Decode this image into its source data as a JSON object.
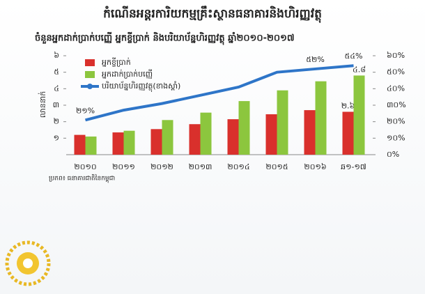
{
  "chart_data": {
    "type": "bar-line",
    "title": "កំណើនអន្តរការិយកម្មគ្រឹះស្ថានធនាគារនិងហិរញ្ញវត្ថុ",
    "subtitle": "ចំនួនអ្នកដាក់ប្រាក់បញ្ញើ  អ្នកខ្ចីប្រាក់ និងបរិយាប័ន្នហិរញ្ញវត្ថុ ឆ្នាំ២០១០-២០១៧",
    "y_label": "លាននាក់",
    "source": "ប្រភព៖ ធនាគារជាតិនៃកម្ពុជា",
    "categories": [
      "២០១០",
      "២០១១",
      "២០១២",
      "២០១៣",
      "២០១៤",
      "២០១៥",
      "២០១៦",
      "ឆ១-១៧"
    ],
    "series": [
      {
        "name": "អ្នកខ្ចីប្រាក់",
        "color": "#d9302c",
        "type": "bar",
        "values": [
          1.2,
          1.35,
          1.55,
          1.85,
          2.15,
          2.45,
          2.7,
          2.6
        ],
        "value_labels": [
          null,
          null,
          null,
          null,
          null,
          null,
          null,
          "២.៦"
        ]
      },
      {
        "name": "អ្នកដាក់ប្រាក់បញ្ញើ",
        "color": "#8cc63e",
        "type": "bar",
        "values": [
          1.1,
          1.45,
          2.1,
          2.55,
          3.25,
          3.9,
          4.45,
          4.8
        ],
        "value_labels": [
          null,
          null,
          null,
          null,
          null,
          null,
          null,
          "៤.៨"
        ]
      },
      {
        "name": "បរិយាប័ន្នហិរញ្ញវត្ថុ(ខាងស្តាំ)",
        "color": "#2e75c8",
        "type": "line",
        "axis": "y2",
        "values": [
          21,
          27,
          31,
          36,
          41,
          50,
          52,
          54
        ],
        "value_labels": [
          "២១%",
          null,
          null,
          null,
          null,
          null,
          "៥២%",
          "៥៤%"
        ]
      }
    ],
    "ylim": [
      0,
      6
    ],
    "yticks": [
      {
        "value": 1,
        "label": "១"
      },
      {
        "value": 2,
        "label": "២"
      },
      {
        "value": 3,
        "label": "៣"
      },
      {
        "value": 4,
        "label": "៤"
      },
      {
        "value": 5,
        "label": "៥"
      },
      {
        "value": 6,
        "label": "៦"
      }
    ],
    "y2lim": [
      0,
      60
    ],
    "y2ticks": [
      {
        "value": 0,
        "label": "០%"
      },
      {
        "value": 10,
        "label": "១០%"
      },
      {
        "value": 20,
        "label": "២០%"
      },
      {
        "value": 30,
        "label": "៣០%"
      },
      {
        "value": 40,
        "label": "៤០%"
      },
      {
        "value": 50,
        "label": "៥០%"
      },
      {
        "value": 60,
        "label": "៦០%"
      }
    ],
    "legend": "upper-left"
  }
}
